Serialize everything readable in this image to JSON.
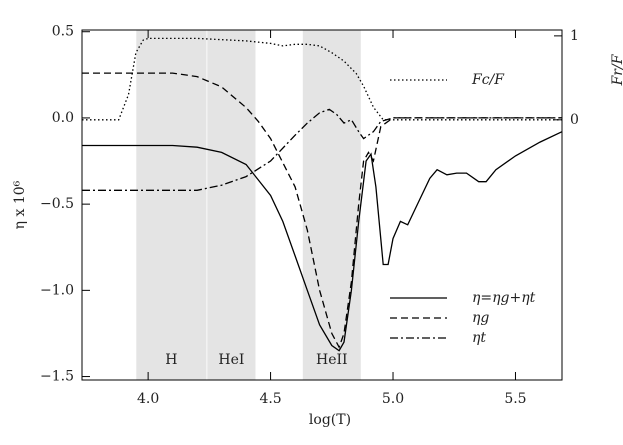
{
  "chart_data": {
    "type": "line",
    "xlabel": "log(T)",
    "ylabel": "η x 10⁶",
    "y2label": "Fr/F",
    "xlim": [
      3.73,
      5.69
    ],
    "ylim": [
      -1.52,
      0.51
    ],
    "y2lim": [
      -3.1,
      1.07
    ],
    "xticks": [
      {
        "value": 4.0,
        "label": "4.0"
      },
      {
        "value": 4.5,
        "label": "4.5"
      },
      {
        "value": 5.0,
        "label": "5.0"
      },
      {
        "value": 5.5,
        "label": "5.5"
      }
    ],
    "yticks": [
      {
        "value": 0.5,
        "label": "0.5"
      },
      {
        "value": 0,
        "label": "0.0"
      },
      {
        "value": -0.5,
        "label": "−0.5"
      },
      {
        "value": -1.0,
        "label": "−1.0"
      },
      {
        "value": -1.5,
        "label": "−1.5"
      }
    ],
    "y2ticks": [
      1,
      0
    ],
    "regions": [
      {
        "label": "H",
        "x": [
          3.95,
          4.24
        ]
      },
      {
        "label": "HeI",
        "x": [
          4.24,
          4.44
        ]
      },
      {
        "label": "HeII",
        "x": [
          4.63,
          4.87
        ]
      }
    ],
    "series": [
      {
        "name": "η=ηg+ηt",
        "color": "#000000",
        "dash": "none",
        "x": [
          3.73,
          3.9,
          4.0,
          4.1,
          4.2,
          4.3,
          4.4,
          4.5,
          4.55,
          4.6,
          4.65,
          4.7,
          4.75,
          4.78,
          4.8,
          4.83,
          4.86,
          4.89,
          4.91,
          4.93,
          4.96,
          4.98,
          5.0,
          5.03,
          5.06,
          5.1,
          5.15,
          5.18,
          5.22,
          5.26,
          5.3,
          5.35,
          5.38,
          5.42,
          5.5,
          5.6,
          5.69
        ],
        "values": [
          -0.16,
          -0.16,
          -0.16,
          -0.16,
          -0.17,
          -0.2,
          -0.27,
          -0.45,
          -0.6,
          -0.8,
          -1.0,
          -1.2,
          -1.32,
          -1.35,
          -1.3,
          -1.0,
          -0.6,
          -0.25,
          -0.21,
          -0.4,
          -0.85,
          -0.85,
          -0.7,
          -0.6,
          -0.62,
          -0.5,
          -0.35,
          -0.3,
          -0.33,
          -0.32,
          -0.32,
          -0.37,
          -0.37,
          -0.3,
          -0.22,
          -0.14,
          -0.08
        ]
      },
      {
        "name": "ηg",
        "color": "#000000",
        "dash": "7 4",
        "x": [
          3.73,
          4.0,
          4.1,
          4.2,
          4.3,
          4.4,
          4.45,
          4.5,
          4.6,
          4.65,
          4.7,
          4.75,
          4.78,
          4.8,
          4.83,
          4.86,
          4.88,
          4.9,
          4.92,
          4.95,
          5.0,
          5.69
        ],
        "values": [
          0.26,
          0.26,
          0.26,
          0.24,
          0.18,
          0.06,
          -0.02,
          -0.12,
          -0.4,
          -0.65,
          -1.0,
          -1.25,
          -1.33,
          -1.25,
          -0.95,
          -0.5,
          -0.25,
          -0.2,
          -0.25,
          -0.05,
          0.0,
          0.0
        ]
      },
      {
        "name": "ηt",
        "color": "#000000",
        "dash": "8 3 2 3",
        "x": [
          3.73,
          4.0,
          4.2,
          4.3,
          4.4,
          4.5,
          4.6,
          4.65,
          4.7,
          4.74,
          4.77,
          4.8,
          4.83,
          4.86,
          4.88,
          4.92,
          4.95,
          5.0,
          5.69
        ],
        "values": [
          -0.42,
          -0.42,
          -0.42,
          -0.39,
          -0.34,
          -0.25,
          -0.1,
          -0.03,
          0.03,
          0.05,
          0.02,
          -0.03,
          -0.01,
          -0.08,
          -0.12,
          -0.08,
          -0.02,
          0.0,
          0.0
        ]
      },
      {
        "name": "Fc/F",
        "color": "#000000",
        "dash": "1.5 2.5",
        "axis": "y2",
        "x": [
          3.73,
          3.88,
          3.92,
          3.95,
          3.98,
          4.0,
          4.2,
          4.4,
          4.5,
          4.55,
          4.6,
          4.65,
          4.7,
          4.75,
          4.8,
          4.85,
          4.88,
          4.92,
          4.96,
          5.69
        ],
        "values": [
          0,
          0,
          0.3,
          0.8,
          0.95,
          0.97,
          0.97,
          0.94,
          0.91,
          0.88,
          0.9,
          0.9,
          0.88,
          0.8,
          0.7,
          0.55,
          0.4,
          0.15,
          0.0,
          0.0
        ]
      }
    ]
  }
}
